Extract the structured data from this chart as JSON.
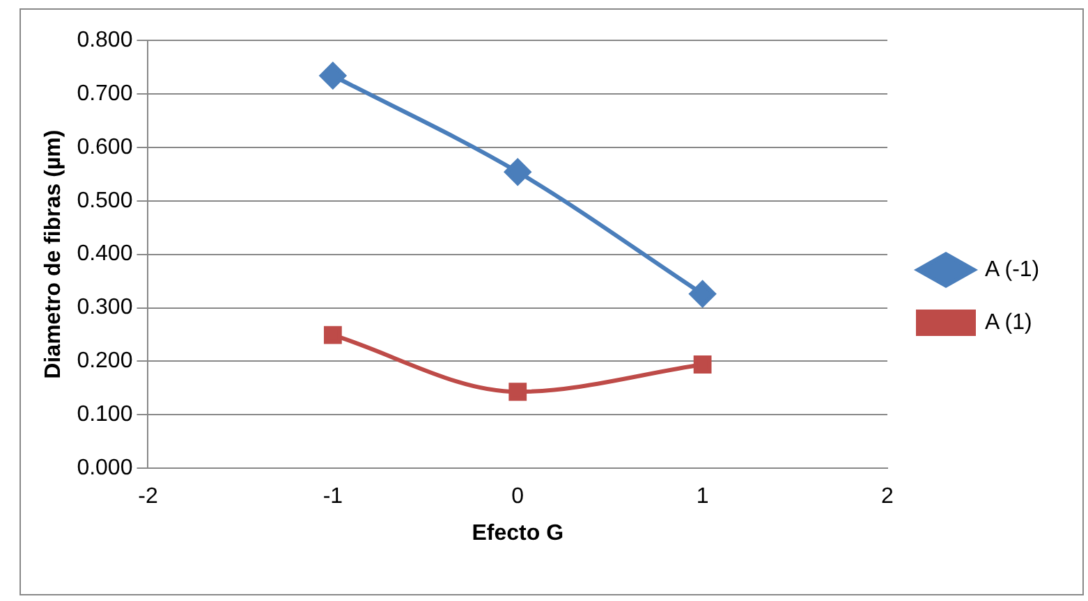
{
  "chart_data": {
    "type": "line",
    "xlabel": "Efecto G",
    "ylabel": "Diametro de fibras (µm)",
    "x": [
      -1,
      0,
      1
    ],
    "series": [
      {
        "name": "A (-1)",
        "color": "#4a7ebb",
        "values": [
          0.734,
          0.554,
          0.326
        ],
        "marker": "diamond"
      },
      {
        "name": "A (1)",
        "color": "#be4b48",
        "values": [
          0.249,
          0.143,
          0.194
        ],
        "marker": "square"
      }
    ],
    "xlim": [
      -2,
      2
    ],
    "xticks": [
      -2,
      -1,
      0,
      1,
      2
    ],
    "ylim": [
      0,
      0.8
    ],
    "yticks": [
      {
        "value": 0,
        "label": "0.000"
      },
      {
        "value": 0.1,
        "label": "0.100"
      },
      {
        "value": 0.2,
        "label": "0.200"
      },
      {
        "value": 0.3,
        "label": "0.300"
      },
      {
        "value": 0.4,
        "label": "0.400"
      },
      {
        "value": 0.5,
        "label": "0.500"
      },
      {
        "value": 0.6,
        "label": "0.600"
      },
      {
        "value": 0.7,
        "label": "0.700"
      },
      {
        "value": 0.8,
        "label": "0.800"
      }
    ],
    "grid": "y",
    "legend": "right",
    "line_style": "solid"
  }
}
